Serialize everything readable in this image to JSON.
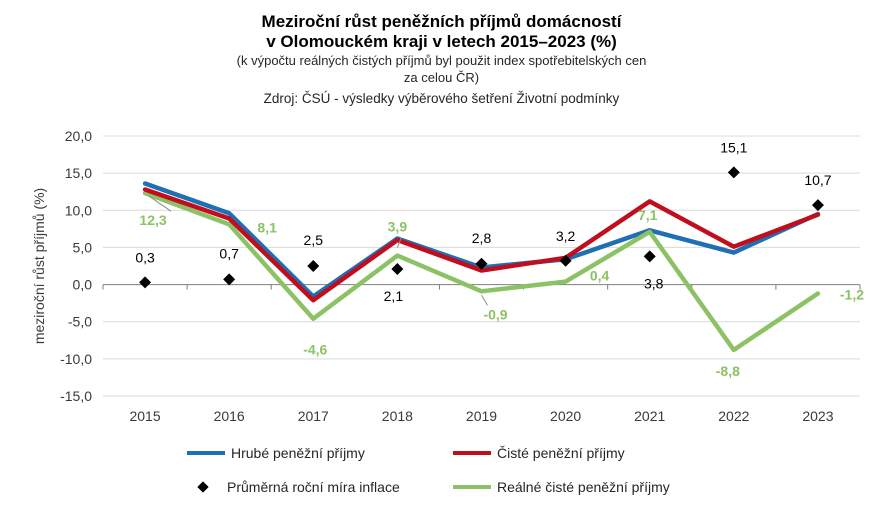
{
  "title_line1": "Meziroční růst peněžních příjmů domácností",
  "title_line2": "v Olomouckém kraji  v letech 2015–2023 (%)",
  "subtitle_line1": "(k výpočtu  reálných čistých příjmů  byl použit  index spotřebitelských  cen",
  "subtitle_line2": "za celou ČR)",
  "source": "Zdroj:  ČSÚ  - výsledky  výběrového  šetření  Životní  podmínky",
  "colors": {
    "hrube": "#1f6fb4",
    "ciste": "#c00e1e",
    "inflace": "#000000",
    "realne": "#8cc265"
  },
  "chart_data": {
    "type": "line",
    "categories": [
      "2015",
      "2016",
      "2017",
      "2018",
      "2019",
      "2020",
      "2021",
      "2022",
      "2023"
    ],
    "ylabel": "meziroční růst příjmů (%)",
    "ylim": [
      -15,
      20
    ],
    "yticks": [
      -15,
      -10,
      -5,
      0,
      5,
      10,
      15,
      20
    ],
    "ytick_labels": [
      "-15,0",
      "-10,0",
      "-5,0",
      "0,0",
      "5,0",
      "10,0",
      "15,0",
      "20,0"
    ],
    "grid": true,
    "legend": "bottom",
    "series": [
      {
        "name": "Hrubé peněžní příjmy",
        "type": "line",
        "color": "#1f6fb4",
        "values": [
          13.6,
          9.6,
          -1.6,
          6.2,
          2.3,
          3.4,
          7.3,
          4.3,
          9.5
        ]
      },
      {
        "name": "Čisté peněžní příjmy",
        "type": "line",
        "color": "#c00e1e",
        "values": [
          12.8,
          8.9,
          -2.1,
          6.0,
          1.9,
          3.6,
          11.2,
          5.1,
          9.4
        ]
      },
      {
        "name": "Průměrná roční míra inflace",
        "type": "marker",
        "color": "#000000",
        "values": [
          0.3,
          0.7,
          2.5,
          2.1,
          2.8,
          3.2,
          3.8,
          15.1,
          10.7
        ],
        "labels": [
          "0,3",
          "0,7",
          "2,5",
          "2,1",
          "2,8",
          "3,2",
          "3,8",
          "15,1",
          "10,7"
        ]
      },
      {
        "name": "Reálné čisté peněžní příjmy",
        "type": "line",
        "color": "#8cc265",
        "values": [
          12.3,
          8.1,
          -4.6,
          3.9,
          -0.9,
          0.4,
          7.1,
          -8.8,
          -1.2
        ],
        "labels": [
          "12,3",
          "8,1",
          "-4,6",
          "3,9",
          "-0,9",
          "0,4",
          "7,1",
          "-8,8",
          "-1,2"
        ]
      }
    ]
  }
}
